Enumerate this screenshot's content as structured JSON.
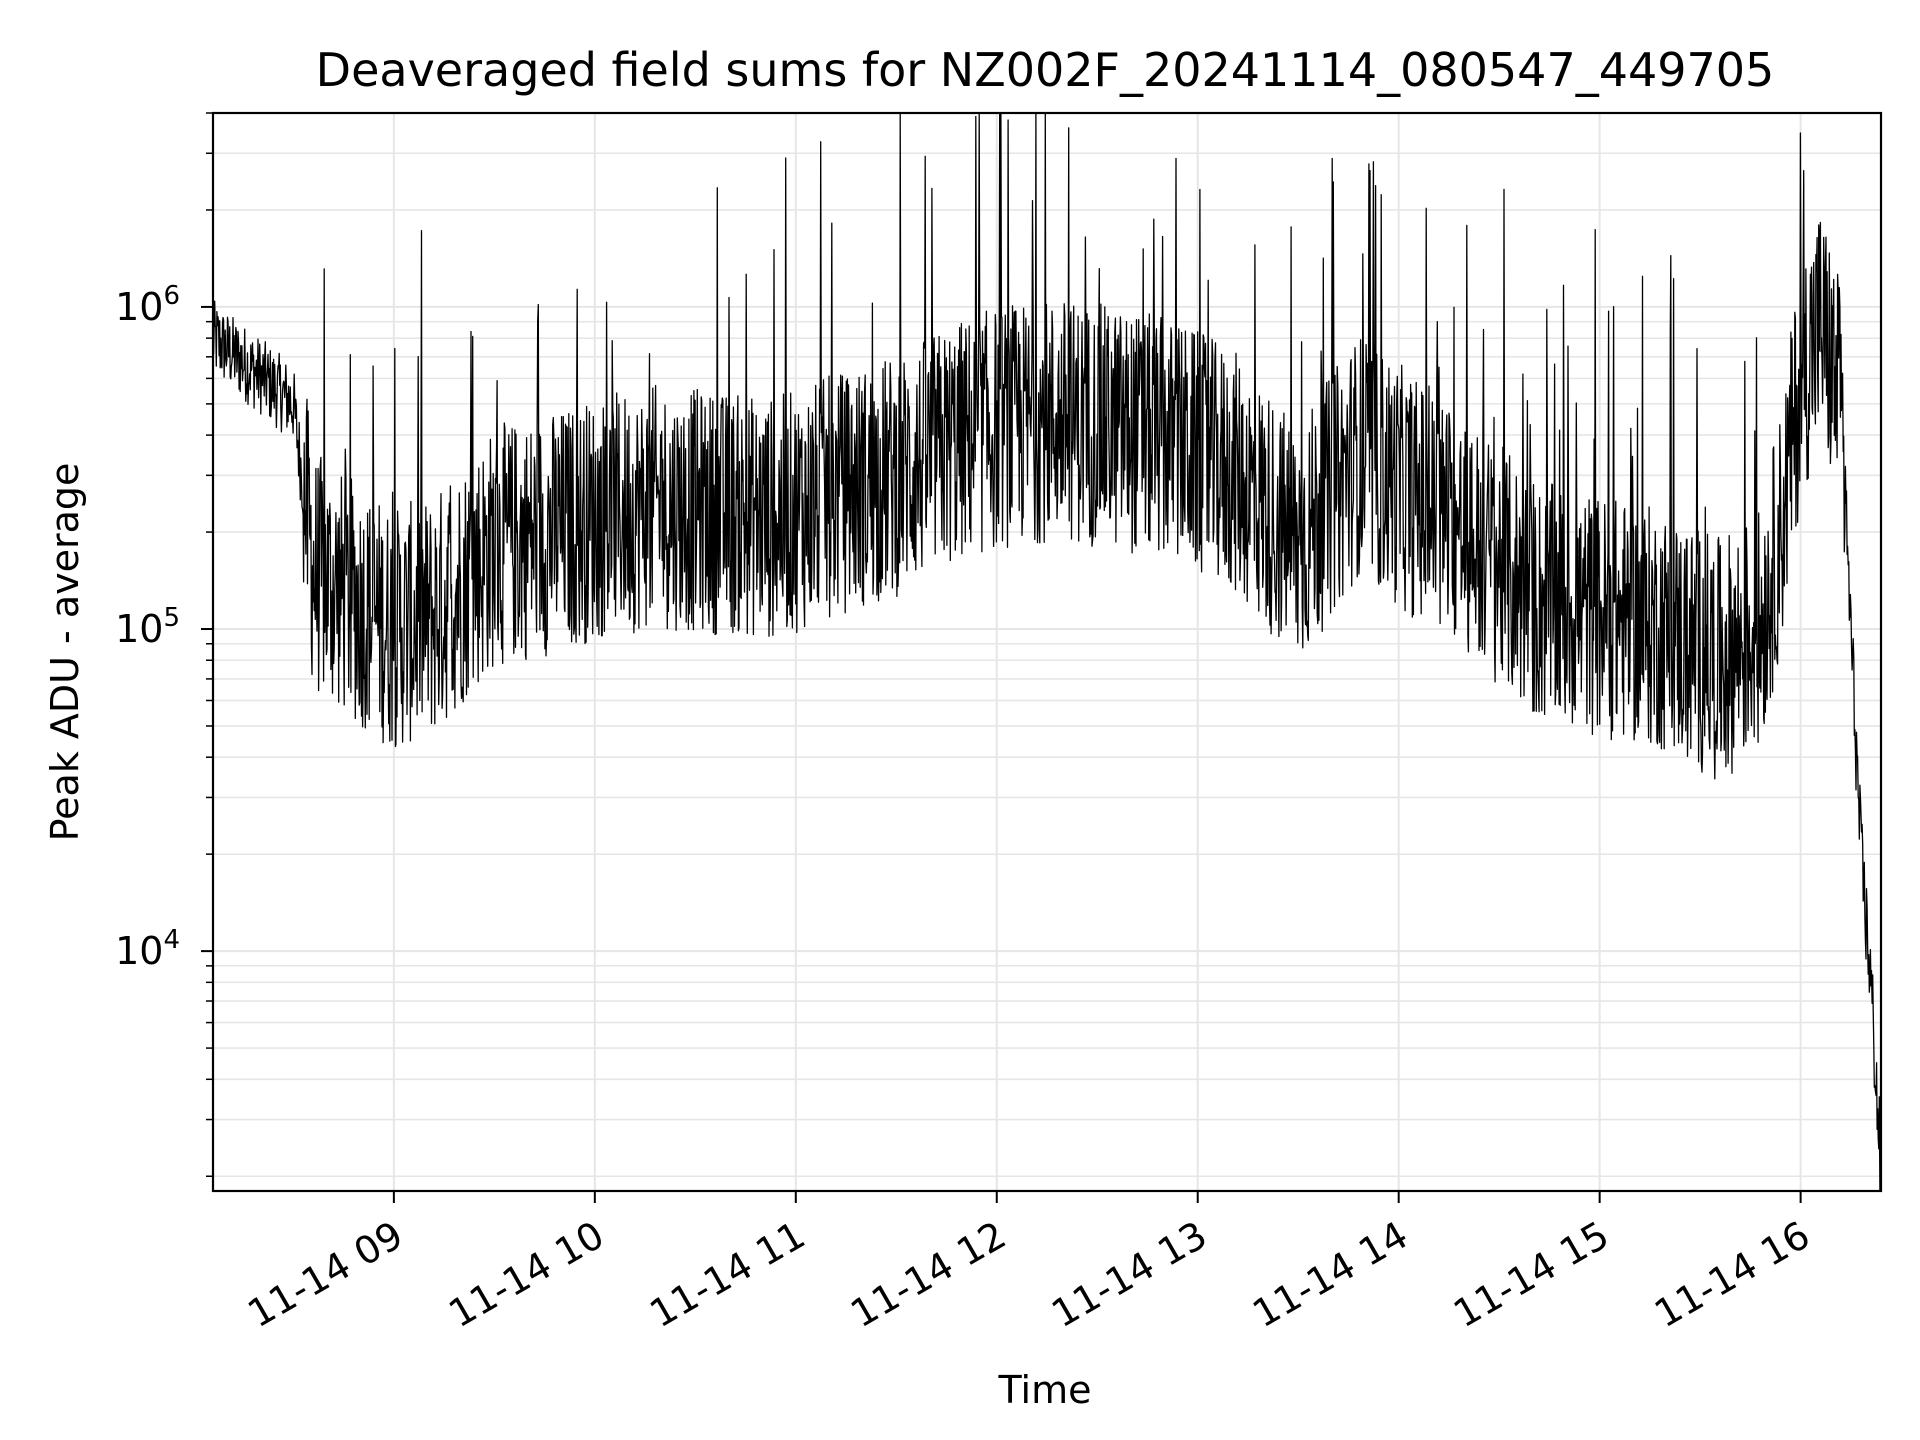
{
  "chart_data": {
    "type": "line",
    "title": "Deaveraged field sums for NZ002F_20241114_080547_449705",
    "xlabel": "Time",
    "ylabel": "Peak ADU - average",
    "yscale": "log",
    "grid": true,
    "legend": "none",
    "line_color": "#000000",
    "grid_color": "#e6e6e6",
    "xlim": [
      "11-14 08:06",
      "11-14 16:24"
    ],
    "ylim": [
      1800,
      4000000
    ],
    "x_tick_labels": [
      "11-14 09",
      "11-14 10",
      "11-14 11",
      "11-14 12",
      "11-14 13",
      "11-14 14",
      "11-14 15",
      "11-14 16"
    ],
    "x_tick_hours": [
      9,
      10,
      11,
      12,
      13,
      14,
      15,
      16
    ],
    "y_tick_labels": [
      {
        "base": "10",
        "exp": "4",
        "value": 10000
      },
      {
        "base": "10",
        "exp": "5",
        "value": 100000
      },
      {
        "base": "10",
        "exp": "6",
        "value": 1000000
      }
    ],
    "series": [
      {
        "hours": [
          8.1,
          8.35,
          8.5,
          8.6,
          8.9,
          9.0,
          9.2,
          9.5,
          9.8,
          10.0,
          10.3,
          10.6,
          10.9,
          11.2,
          11.5,
          11.8,
          12.0,
          12.3,
          12.6,
          12.9,
          13.2,
          13.5,
          13.8,
          14.1,
          14.4,
          14.7,
          15.0,
          15.3,
          15.6,
          15.8,
          15.9,
          16.0,
          16.1,
          16.2,
          16.3,
          16.35,
          16.4
        ],
        "values": [
          800000,
          600000,
          500000,
          150000,
          110000,
          100000,
          110000,
          180000,
          200000,
          220000,
          240000,
          230000,
          220000,
          260000,
          300000,
          380000,
          420000,
          450000,
          420000,
          380000,
          300000,
          180000,
          350000,
          250000,
          180000,
          120000,
          110000,
          100000,
          80000,
          100000,
          200000,
          600000,
          900000,
          500000,
          20000,
          8000,
          2000
        ]
      }
    ]
  }
}
